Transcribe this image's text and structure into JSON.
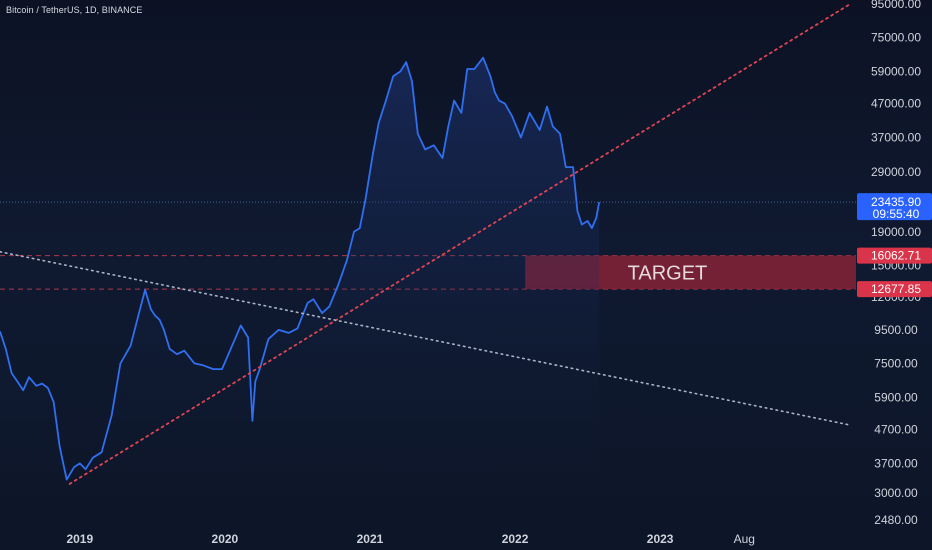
{
  "title": "Bitcoin / TetherUS, 1D, BINANCE",
  "colors": {
    "price_line": "#2f6ff0",
    "price_fill_top": "#23408f",
    "target_box": "#8b2237",
    "red_dash": "#e04553",
    "white_dots": "#aab3c6",
    "current_tag": "#2962ff",
    "red_tag": "#d9344a"
  },
  "target_label": "TARGET",
  "current_price": {
    "price": "23435.90",
    "countdown": "09:55:40"
  },
  "level_tags": [
    "16062.71",
    "12677.85"
  ],
  "chart_data": {
    "type": "line",
    "title": "",
    "scale": "log",
    "xlabel": "",
    "ylabel": "",
    "y_ticks": [
      "95000.00",
      "75000.00",
      "59000.00",
      "47000.00",
      "37000.00",
      "29000.00",
      "23000.00",
      "19000.00",
      "15000.00",
      "12000.00",
      "9500.00",
      "7500.00",
      "5900.00",
      "4700.00",
      "3700.00",
      "3000.00",
      "2480.00"
    ],
    "x_ticks": [
      {
        "label": "2019",
        "t": 2019.0,
        "major": true
      },
      {
        "label": "2020",
        "t": 2020.0,
        "major": true
      },
      {
        "label": "2021",
        "t": 2021.0,
        "major": true
      },
      {
        "label": "2022",
        "t": 2022.0,
        "major": true
      },
      {
        "label": "2023",
        "t": 2023.0,
        "major": true
      },
      {
        "label": "Aug",
        "t": 2023.58,
        "major": false
      }
    ],
    "ylim": [
      2480,
      95000
    ],
    "xlim": [
      2018.45,
      2024.35
    ],
    "series": [
      {
        "x": [
          2018.45,
          2018.49,
          2018.53,
          2018.57,
          2018.61,
          2018.65,
          2018.7,
          2018.74,
          2018.78,
          2018.82,
          2018.86,
          2018.88,
          2018.91,
          2018.96,
          2019.0,
          2019.04,
          2019.09,
          2019.15,
          2019.22,
          2019.28,
          2019.35,
          2019.41,
          2019.45,
          2019.49,
          2019.52,
          2019.55,
          2019.58,
          2019.62,
          2019.67,
          2019.72,
          2019.79,
          2019.85,
          2019.92,
          2019.98,
          2020.05,
          2020.11,
          2020.16,
          2020.19,
          2020.21,
          2020.24,
          2020.3,
          2020.37,
          2020.44,
          2020.5,
          2020.57,
          2020.61,
          2020.67,
          2020.72,
          2020.78,
          2020.84,
          2020.89,
          2020.93,
          2020.97,
          2021.02,
          2021.06,
          2021.11,
          2021.16,
          2021.21,
          2021.25,
          2021.29,
          2021.33,
          2021.38,
          2021.44,
          2021.5,
          2021.54,
          2021.58,
          2021.63,
          2021.67,
          2021.72,
          2021.78,
          2021.83,
          2021.86,
          2021.89,
          2021.93,
          2021.98,
          2022.04,
          2022.1,
          2022.17,
          2022.22,
          2022.26,
          2022.31,
          2022.35,
          2022.4,
          2022.43,
          2022.46,
          2022.5,
          2022.53,
          2022.56,
          2022.58
        ],
        "y": [
          9400,
          8300,
          7000,
          6600,
          6200,
          6800,
          6400,
          6500,
          6300,
          5700,
          4200,
          3800,
          3300,
          3600,
          3700,
          3550,
          3850,
          4000,
          5200,
          7500,
          8500,
          10800,
          12600,
          11000,
          10500,
          10200,
          9500,
          8300,
          8000,
          8200,
          7500,
          7400,
          7200,
          7200,
          8500,
          9800,
          9000,
          5000,
          6600,
          7200,
          8900,
          9500,
          9300,
          9600,
          11500,
          11800,
          10700,
          11200,
          13000,
          15500,
          19000,
          19500,
          24000,
          33000,
          41000,
          48000,
          57000,
          59000,
          63000,
          55000,
          38000,
          34000,
          35000,
          32000,
          40000,
          48000,
          44000,
          60000,
          60000,
          65000,
          57000,
          51000,
          48000,
          47000,
          43000,
          37000,
          44000,
          39000,
          46000,
          40000,
          38000,
          30000,
          30000,
          22000,
          20000,
          20500,
          19500,
          21000,
          23435.9
        ]
      }
    ],
    "horizontal_levels": [
      16062.71,
      12677.85
    ],
    "target_zone": {
      "x_start": 2022.07,
      "x_end": 2024.35,
      "y_low": 12677.85,
      "y_high": 16062.71
    },
    "red_trendline": {
      "points": [
        [
          2018.93,
          3200
        ],
        [
          2024.31,
          95000
        ]
      ]
    },
    "white_trendline": {
      "points": [
        [
          2018.45,
          16500
        ],
        [
          2024.31,
          4850
        ]
      ]
    },
    "current_price_line": 23435.9,
    "grid": false,
    "legend": "none"
  }
}
